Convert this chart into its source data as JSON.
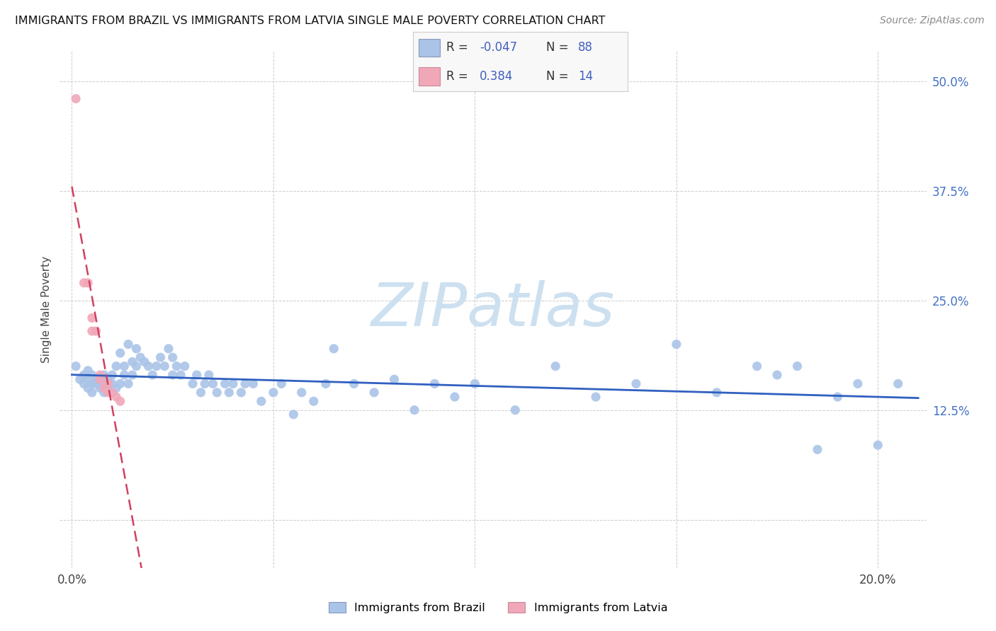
{
  "title": "IMMIGRANTS FROM BRAZIL VS IMMIGRANTS FROM LATVIA SINGLE MALE POVERTY CORRELATION CHART",
  "source_text": "Source: ZipAtlas.com",
  "ylabel": "Single Male Poverty",
  "xlim": [
    -0.003,
    0.212
  ],
  "ylim": [
    -0.055,
    0.535
  ],
  "brazil_R": -0.047,
  "brazil_N": 88,
  "latvia_R": 0.384,
  "latvia_N": 14,
  "brazil_color": "#aac4e8",
  "latvia_color": "#f0a8b8",
  "brazil_line_color": "#3060c0",
  "latvia_line_color": "#d04060",
  "watermark_color": "#cce0f0",
  "brazil_x": [
    0.001,
    0.002,
    0.003,
    0.003,
    0.004,
    0.004,
    0.004,
    0.005,
    0.005,
    0.005,
    0.006,
    0.006,
    0.007,
    0.007,
    0.008,
    0.008,
    0.008,
    0.009,
    0.009,
    0.01,
    0.01,
    0.011,
    0.011,
    0.012,
    0.012,
    0.013,
    0.013,
    0.014,
    0.014,
    0.015,
    0.015,
    0.016,
    0.016,
    0.017,
    0.018,
    0.019,
    0.02,
    0.021,
    0.022,
    0.023,
    0.024,
    0.025,
    0.025,
    0.026,
    0.027,
    0.028,
    0.03,
    0.031,
    0.032,
    0.033,
    0.034,
    0.035,
    0.036,
    0.038,
    0.039,
    0.04,
    0.042,
    0.043,
    0.045,
    0.047,
    0.05,
    0.052,
    0.055,
    0.057,
    0.06,
    0.063,
    0.065,
    0.07,
    0.075,
    0.08,
    0.085,
    0.09,
    0.095,
    0.1,
    0.11,
    0.12,
    0.13,
    0.14,
    0.15,
    0.16,
    0.17,
    0.175,
    0.18,
    0.185,
    0.19,
    0.195,
    0.2,
    0.205
  ],
  "brazil_y": [
    0.175,
    0.16,
    0.165,
    0.155,
    0.15,
    0.16,
    0.17,
    0.145,
    0.155,
    0.165,
    0.155,
    0.16,
    0.15,
    0.16,
    0.145,
    0.155,
    0.165,
    0.15,
    0.16,
    0.155,
    0.165,
    0.15,
    0.175,
    0.19,
    0.155,
    0.165,
    0.175,
    0.2,
    0.155,
    0.18,
    0.165,
    0.195,
    0.175,
    0.185,
    0.18,
    0.175,
    0.165,
    0.175,
    0.185,
    0.175,
    0.195,
    0.165,
    0.185,
    0.175,
    0.165,
    0.175,
    0.155,
    0.165,
    0.145,
    0.155,
    0.165,
    0.155,
    0.145,
    0.155,
    0.145,
    0.155,
    0.145,
    0.155,
    0.155,
    0.135,
    0.145,
    0.155,
    0.12,
    0.145,
    0.135,
    0.155,
    0.195,
    0.155,
    0.145,
    0.16,
    0.125,
    0.155,
    0.14,
    0.155,
    0.125,
    0.175,
    0.14,
    0.155,
    0.2,
    0.145,
    0.175,
    0.165,
    0.175,
    0.08,
    0.14,
    0.155,
    0.085,
    0.155
  ],
  "latvia_x": [
    0.001,
    0.003,
    0.004,
    0.005,
    0.005,
    0.006,
    0.007,
    0.007,
    0.008,
    0.009,
    0.009,
    0.01,
    0.011,
    0.012
  ],
  "latvia_y": [
    0.48,
    0.27,
    0.27,
    0.23,
    0.215,
    0.215,
    0.165,
    0.16,
    0.15,
    0.155,
    0.145,
    0.145,
    0.14,
    0.135
  ]
}
